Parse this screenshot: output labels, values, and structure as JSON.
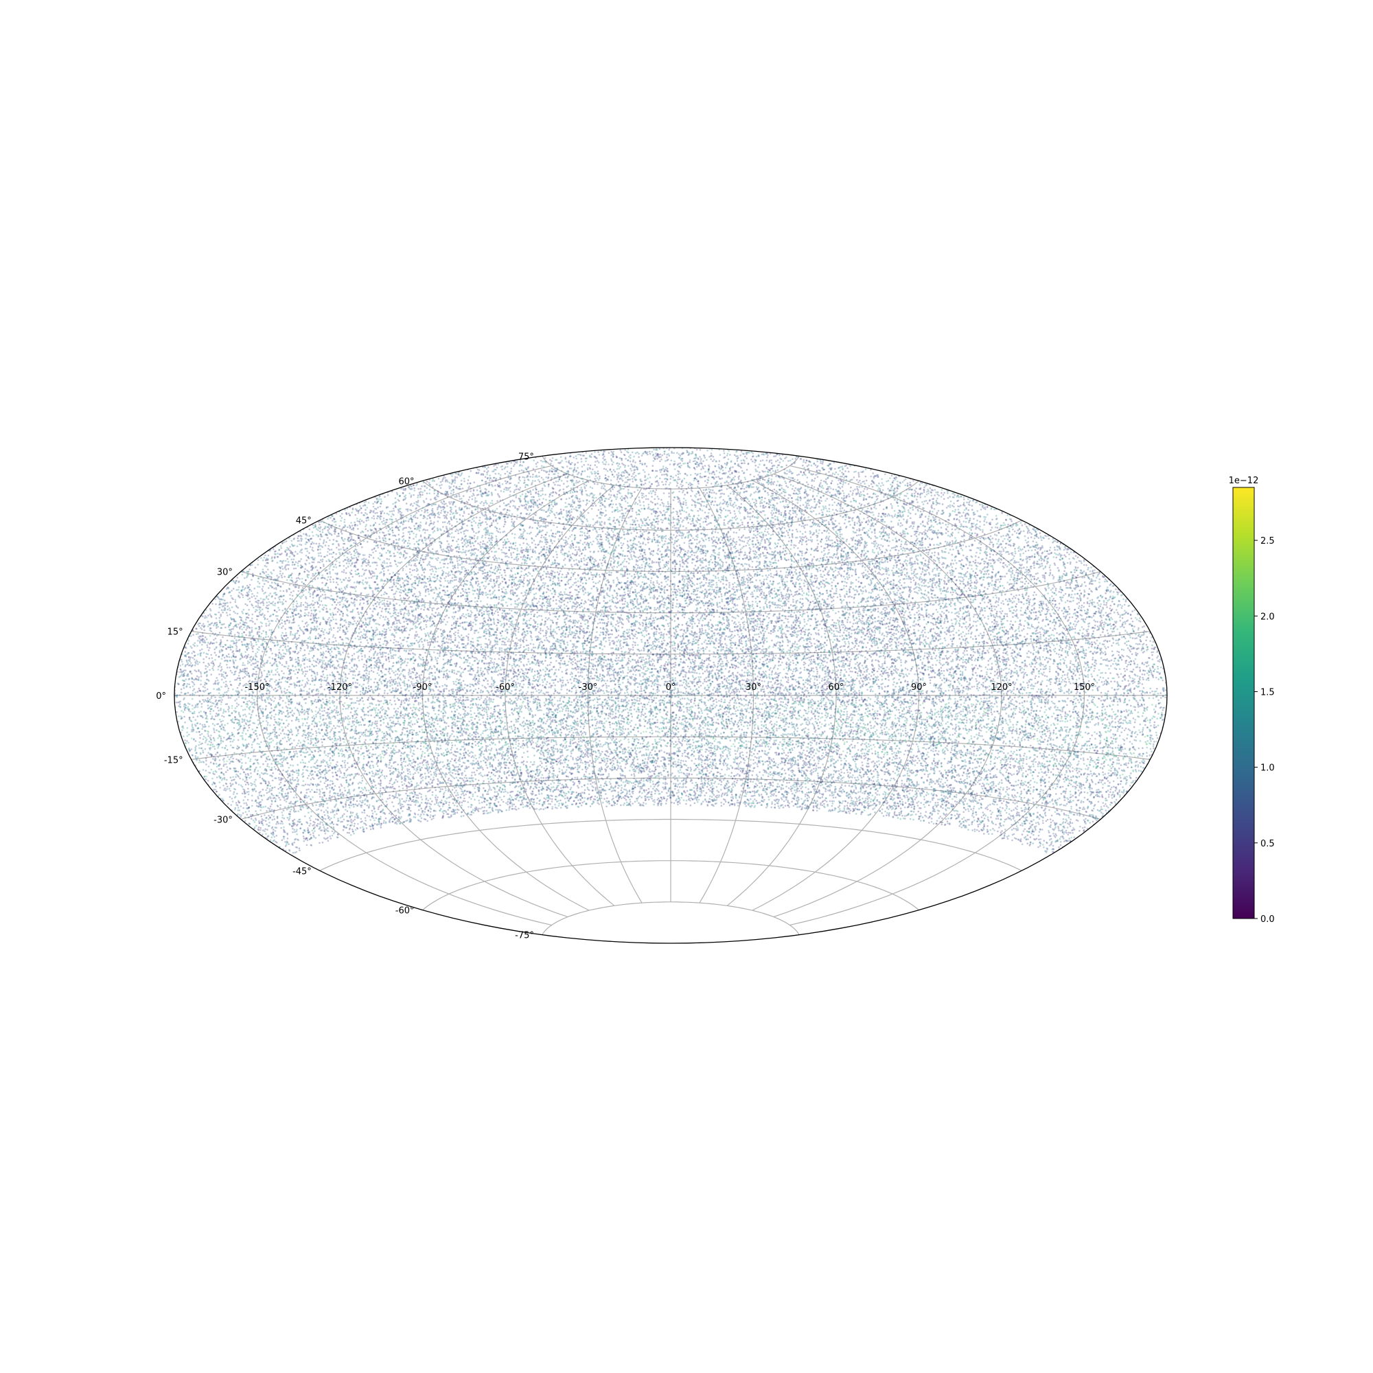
{
  "chart_data": {
    "type": "scatter",
    "projection": "aitoff",
    "title": "",
    "xlabel": "",
    "ylabel": "",
    "x_range_deg": [
      -180,
      180
    ],
    "y_range_deg": [
      -90,
      90
    ],
    "x_ticks": [
      "-150°",
      "-120°",
      "-90°",
      "-60°",
      "-30°",
      "0°",
      "30°",
      "60°",
      "90°",
      "120°",
      "150°"
    ],
    "x_tick_values": [
      -150,
      -120,
      -90,
      -60,
      -30,
      0,
      30,
      60,
      90,
      120,
      150
    ],
    "y_ticks": [
      "-75°",
      "-60°",
      "-45°",
      "-30°",
      "-15°",
      "0°",
      "15°",
      "30°",
      "45°",
      "60°",
      "75°"
    ],
    "y_tick_values": [
      -75,
      -60,
      -45,
      -30,
      -15,
      0,
      15,
      30,
      45,
      60,
      75
    ],
    "grid": true,
    "coverage_dec_range_deg": [
      -40,
      90
    ],
    "point_density": "dense all-sky sampling",
    "colorbar": {
      "colormap": "viridis",
      "range": [
        0.0,
        2.85
      ],
      "multiplier_label": "1e−12",
      "ticks": [
        "0.0",
        "0.5",
        "1.0",
        "1.5",
        "2.0",
        "2.5"
      ],
      "tick_values": [
        0.0,
        0.5,
        1.0,
        1.5,
        2.0,
        2.5
      ],
      "typical_value_range": [
        0.4,
        1.6
      ]
    },
    "colors": {
      "viridis": [
        "#440154",
        "#482878",
        "#3e4989",
        "#31688e",
        "#26828e",
        "#1f9e89",
        "#35b779",
        "#6ece58",
        "#b5de2b",
        "#fde725"
      ],
      "frame": "#000000",
      "grid": "#b0b0b0"
    }
  }
}
